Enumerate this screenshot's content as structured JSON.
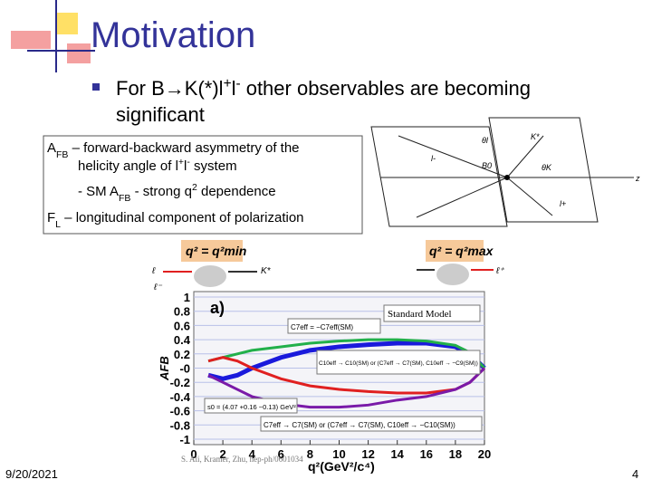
{
  "title": "Motivation",
  "bullet": {
    "line1": [
      "For B→K(*)l",
      "+",
      "l",
      "-",
      " other observables are becoming"
    ],
    "line2": "significant"
  },
  "box": {
    "line1": [
      "A",
      "FB",
      " – forward-backward asymmetry of the"
    ],
    "line2": [
      "helicity angle of l",
      "+",
      "l",
      "-",
      " system"
    ],
    "line3": [
      "- SM A",
      "FB",
      " - strong q",
      "2",
      " dependence"
    ],
    "line4": [
      "F",
      "L",
      " – longitudinal component of polarization"
    ]
  },
  "kinematics": {
    "labels": [
      "θl",
      "K*",
      "l-",
      "B0",
      "θK",
      "l+",
      "z"
    ]
  },
  "diagrams": {
    "left": "q² = q²min",
    "right": "q² = q²max",
    "labels": [
      "ℓ",
      "ℓ⁻",
      "K*",
      "ℓ⁺"
    ]
  },
  "chart_data": {
    "type": "line",
    "panel": "a)",
    "x_label": "q²(GeV²/c⁴)",
    "y_label": "AFB",
    "x": [
      1,
      2,
      3,
      4,
      6,
      8,
      10,
      12,
      14,
      16,
      18,
      19,
      20
    ],
    "series": [
      {
        "name": "Standard Model",
        "color": "#1a1adc",
        "values": [
          -0.1,
          -0.15,
          -0.1,
          0,
          0.15,
          0.25,
          0.3,
          0.33,
          0.35,
          0.35,
          0.3,
          0.2,
          0
        ]
      },
      {
        "name": "C7eff = −C7eff(SM)",
        "color": "#22b04a",
        "values": [
          0.1,
          0.15,
          0.2,
          0.25,
          0.3,
          0.35,
          0.38,
          0.4,
          0.4,
          0.38,
          0.32,
          0.22,
          0
        ]
      },
      {
        "name": "C10eff → C10(SM) or (C7eff → C7(SM), C10eff → −C9(SM))",
        "color": "#e02020",
        "values": [
          0.1,
          0.15,
          0.1,
          0,
          -0.15,
          -0.25,
          -0.3,
          -0.33,
          -0.35,
          -0.35,
          -0.3,
          -0.2,
          0
        ]
      },
      {
        "name": "C7eff → C7(SM) or (C7eff → C7(SM), C10eff → −C10(SM))",
        "color": "#7a1aa8",
        "values": [
          -0.1,
          -0.2,
          -0.3,
          -0.4,
          -0.5,
          -0.55,
          -0.55,
          -0.52,
          -0.45,
          -0.4,
          -0.3,
          -0.2,
          0
        ]
      }
    ],
    "annotation": "s0 = (4.07 +0.16 −0.13) GeV²",
    "xlim": [
      0,
      20
    ],
    "ylim": [
      -1,
      1
    ],
    "xticks": [
      0,
      2,
      4,
      6,
      8,
      10,
      12,
      14,
      16,
      18,
      20
    ],
    "yticks": [
      1,
      0.8,
      0.6,
      0.4,
      0.2,
      {
        "value": 0,
        "label": "-0"
      },
      -0.2,
      -0.4,
      -0.6,
      -0.8,
      -1
    ],
    "citation": "S. Ali, Kramer, Zhu, hep-ph/0601034"
  },
  "footer": {
    "date": "9/20/2021",
    "page": "4"
  }
}
